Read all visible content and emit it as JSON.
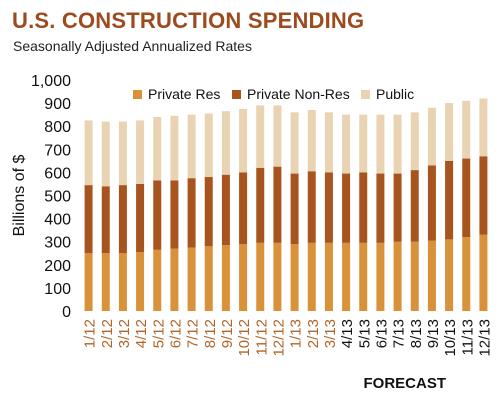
{
  "colors": {
    "title": "#9c4a1e",
    "private_res": "#d9913a",
    "private_non_res": "#a8541e",
    "public": "#e9d3b3",
    "actual_tick": "#b0652a",
    "forecast_tick": "#111111"
  },
  "chart_data": {
    "type": "bar",
    "stacked": true,
    "title": "U.S. CONSTRUCTION SPENDING",
    "subtitle": "Seasonally Adjusted Annualized Rates",
    "ylabel": "Billions of $",
    "xlabel": "",
    "ylim": [
      0,
      1000
    ],
    "yticks": [
      "0",
      "100",
      "200",
      "300",
      "400",
      "500",
      "600",
      "700",
      "800",
      "900",
      "1,000"
    ],
    "legend_position": "top",
    "grid": false,
    "categories": [
      "1/12",
      "2/12",
      "3/12",
      "4/12",
      "5/12",
      "6/12",
      "7/12",
      "8/12",
      "9/12",
      "10/12",
      "11/12",
      "12/12",
      "1/13",
      "2/13",
      "3/13",
      "4/13",
      "5/13",
      "6/13",
      "7/13",
      "8/13",
      "9/13",
      "10/13",
      "11/13",
      "12/13"
    ],
    "forecast_start_index": 15,
    "forecast_label": "FORECAST",
    "series": [
      {
        "name": "Private Res",
        "values": [
          250,
          250,
          250,
          255,
          265,
          270,
          275,
          280,
          285,
          290,
          295,
          295,
          290,
          295,
          295,
          295,
          295,
          295,
          300,
          300,
          305,
          310,
          320,
          330
        ]
      },
      {
        "name": "Private Non-Res",
        "values": [
          295,
          290,
          295,
          295,
          300,
          295,
          300,
          300,
          305,
          310,
          325,
          330,
          305,
          310,
          305,
          300,
          305,
          300,
          295,
          310,
          325,
          340,
          340,
          340
        ]
      },
      {
        "name": "Public",
        "values": [
          280,
          280,
          275,
          275,
          275,
          280,
          275,
          275,
          275,
          275,
          270,
          265,
          265,
          265,
          260,
          255,
          250,
          255,
          255,
          250,
          250,
          250,
          250,
          250
        ]
      }
    ]
  }
}
